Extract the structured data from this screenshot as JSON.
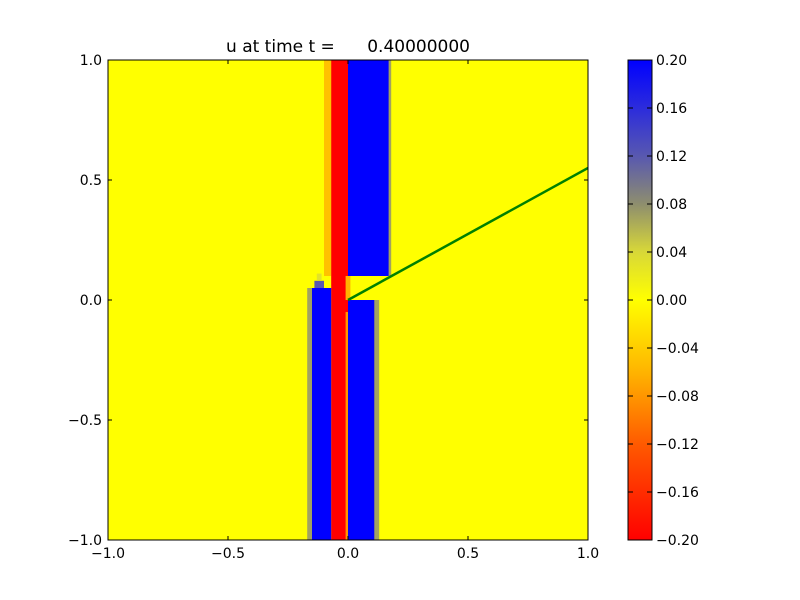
{
  "chart_data": {
    "type": "heatmap",
    "title": "u at time t =      0.40000000",
    "xlabel": "",
    "ylabel": "",
    "xlim": [
      -1.0,
      1.0
    ],
    "ylim": [
      -1.0,
      1.0
    ],
    "x_ticks": [
      -1.0,
      -0.5,
      0.0,
      0.5,
      1.0
    ],
    "x_tick_labels": [
      "−1.0",
      "−0.5",
      "0.0",
      "0.5",
      "1.0"
    ],
    "y_ticks": [
      -1.0,
      -0.5,
      0.0,
      0.5,
      1.0
    ],
    "y_tick_labels": [
      "−1.0",
      "−0.5",
      "0.0",
      "0.5",
      "1.0"
    ],
    "grid": false,
    "background_value": 0.0,
    "cells": [
      {
        "x": [
          -0.1,
          -0.07
        ],
        "y": [
          0.1,
          1.0
        ],
        "value": -0.05
      },
      {
        "x": [
          -0.07,
          0.0
        ],
        "y": [
          -1.0,
          1.0
        ],
        "value": -0.2
      },
      {
        "x": [
          0.0,
          0.17
        ],
        "y": [
          0.1,
          1.0
        ],
        "value": 0.2
      },
      {
        "x": [
          0.17,
          0.18
        ],
        "y": [
          0.1,
          1.0
        ],
        "value": 0.07
      },
      {
        "x": [
          -0.17,
          -0.15
        ],
        "y": [
          -1.0,
          0.05
        ],
        "value": 0.07
      },
      {
        "x": [
          -0.15,
          -0.07
        ],
        "y": [
          -1.0,
          0.05
        ],
        "value": 0.2
      },
      {
        "x": [
          -0.14,
          -0.1
        ],
        "y": [
          0.05,
          0.08
        ],
        "value": 0.12
      },
      {
        "x": [
          -0.13,
          -0.11
        ],
        "y": [
          0.08,
          0.11
        ],
        "value": 0.03
      },
      {
        "x": [
          -0.01,
          0.0
        ],
        "y": [
          -1.0,
          -0.05
        ],
        "value": -0.08
      },
      {
        "x": [
          0.0,
          0.11
        ],
        "y": [
          -1.0,
          0.0
        ],
        "value": 0.2
      },
      {
        "x": [
          0.11,
          0.13
        ],
        "y": [
          -1.0,
          0.0
        ],
        "value": 0.07
      },
      {
        "x": [
          -0.01,
          0.01
        ],
        "y": [
          0.0,
          0.1
        ],
        "value": -0.06
      }
    ],
    "line": {
      "x": [
        0.0,
        1.0
      ],
      "y": [
        0.0,
        0.55
      ],
      "color": "#008000"
    },
    "colorbar": {
      "vmin": -0.2,
      "vmax": 0.2,
      "ticks": [
        -0.2,
        -0.16,
        -0.12,
        -0.08,
        -0.04,
        0.0,
        0.04,
        0.08,
        0.12,
        0.16,
        0.2
      ],
      "tick_labels": [
        "−0.20",
        "−0.16",
        "−0.12",
        "−0.08",
        "−0.04",
        "0.00",
        "0.04",
        "0.08",
        "0.12",
        "0.16",
        "0.20"
      ],
      "colormap": [
        {
          "value": -0.2,
          "color": "#ff0000"
        },
        {
          "value": -0.12,
          "color": "#ff5a00"
        },
        {
          "value": -0.06,
          "color": "#ffb400"
        },
        {
          "value": 0.0,
          "color": "#ffff00"
        },
        {
          "value": 0.04,
          "color": "#d8d838"
        },
        {
          "value": 0.08,
          "color": "#8e8e6e"
        },
        {
          "value": 0.12,
          "color": "#5858b0"
        },
        {
          "value": 0.16,
          "color": "#2c2cdc"
        },
        {
          "value": 0.2,
          "color": "#0000ff"
        }
      ]
    }
  }
}
